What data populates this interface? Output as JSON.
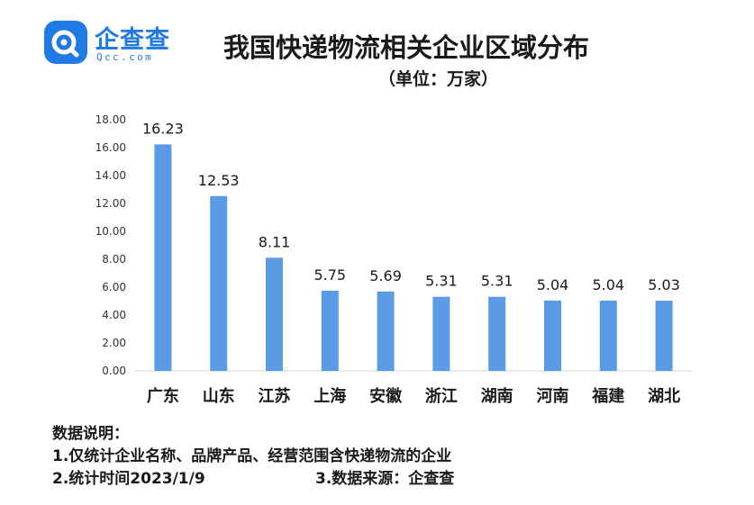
{
  "logo": {
    "name": "企查查",
    "domain": "Qcc.com",
    "brand_color": "#1e7be6"
  },
  "header": {
    "title": "我国快递物流相关企业区域分布",
    "subtitle": "（单位：万家）"
  },
  "chart_data": {
    "type": "bar",
    "title": "我国快递物流相关企业区域分布",
    "subtitle": "（单位：万家）",
    "xlabel": "",
    "ylabel": "",
    "categories": [
      "广东",
      "山东",
      "江苏",
      "上海",
      "安徽",
      "浙江",
      "湖南",
      "河南",
      "福建",
      "湖北"
    ],
    "values": [
      16.23,
      12.53,
      8.11,
      5.75,
      5.69,
      5.31,
      5.31,
      5.04,
      5.04,
      5.03
    ],
    "data_labels": [
      "16.23",
      "12.53",
      "8.11",
      "5.75",
      "5.69",
      "5.31",
      "5.31",
      "5.04",
      "5.04",
      "5.03"
    ],
    "ylim": [
      0,
      18
    ],
    "yticks": [
      "0.00",
      "2.00",
      "4.00",
      "6.00",
      "8.00",
      "10.00",
      "12.00",
      "14.00",
      "16.00",
      "18.00"
    ],
    "grid": false,
    "legend": "none",
    "bar_color": "#5b9be6"
  },
  "notes": {
    "heading": "数据说明：",
    "note_1": "1.仅统计企业名称、品牌产品、经营范围含快递物流的企业",
    "note_2": "2.统计时间2023/1/9",
    "note_3": "3.数据来源：企查查"
  }
}
